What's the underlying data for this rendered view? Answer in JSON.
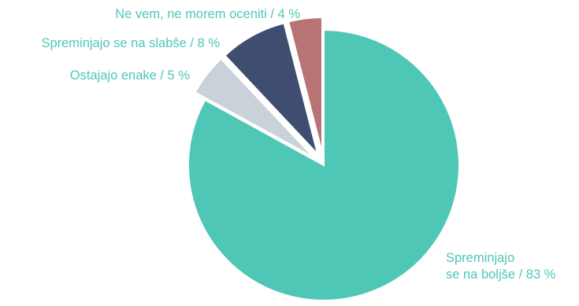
{
  "chart_data": {
    "type": "pie",
    "start": "12 o'clock",
    "direction": "clockwise",
    "title": "",
    "slices": [
      {
        "label_lines": [
          "Spreminjajo",
          "se na boljše / 83 %"
        ],
        "value": 83,
        "color": "#4fc7b6",
        "exploded": false
      },
      {
        "label_lines": [
          "Ostajajo enake / 5 %"
        ],
        "value": 5,
        "color": "#c9d2d8",
        "exploded": true
      },
      {
        "label_lines": [
          "Spreminjajo se na slabše / 8 %"
        ],
        "value": 8,
        "color": "#3f4d70",
        "exploded": true
      },
      {
        "label_lines": [
          "Ne vem, ne morem oceniti / 4 %"
        ],
        "value": 4,
        "color": "#b87474",
        "exploded": true
      }
    ]
  }
}
